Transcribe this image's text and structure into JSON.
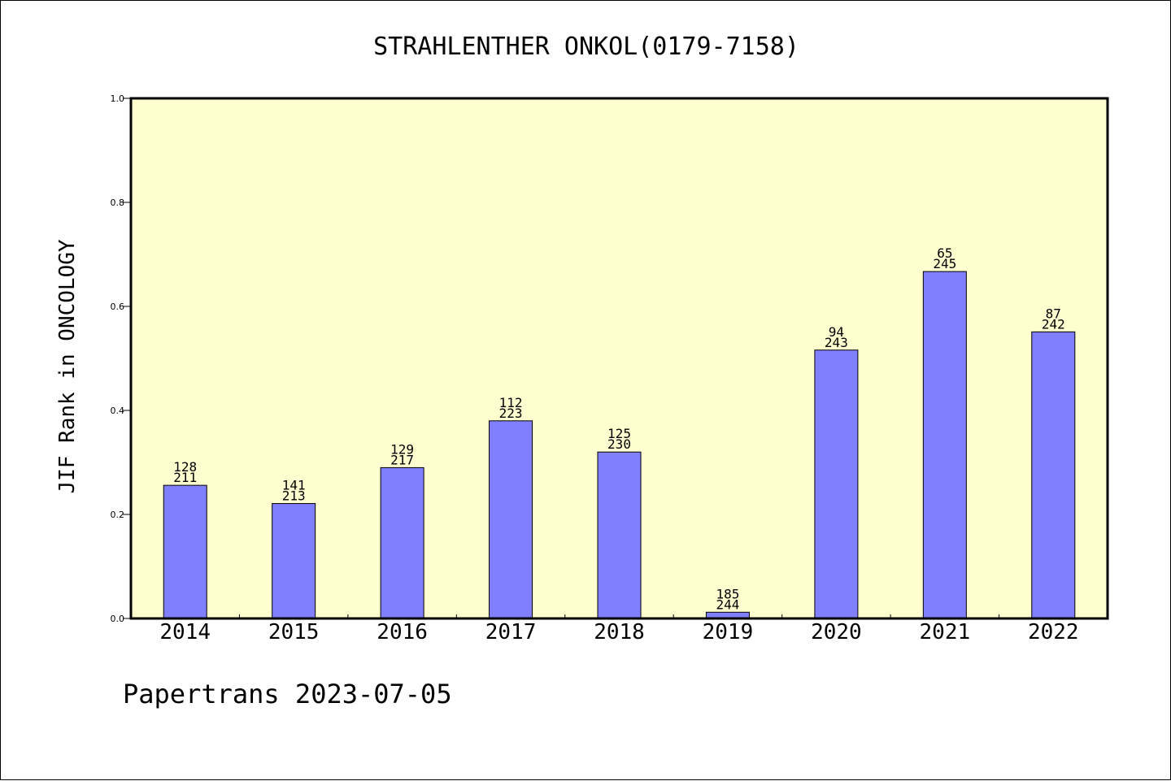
{
  "footer": {
    "text": "Papertrans 2023-07-05"
  },
  "colors": {
    "plot_background": "#ffffd0",
    "bar_fill": "#8080ff",
    "bar_stroke": "#000000",
    "axis": "#000000"
  },
  "chart_data": {
    "type": "bar",
    "title": "STRAHLENTHER ONKOL(0179-7158)",
    "xlabel": "",
    "ylabel": "JIF Rank in ONCOLOGY",
    "ylim": [
      0,
      1.0
    ],
    "yticks": [
      "0.0",
      "0.2",
      "0.4",
      "0.6",
      "0.8",
      "1.0"
    ],
    "grid": false,
    "categories": [
      "2014",
      "2015",
      "2016",
      "2017",
      "2018",
      "2019",
      "2020",
      "2021",
      "2022"
    ],
    "values": [
      0.256,
      0.221,
      0.29,
      0.38,
      0.32,
      0.012,
      0.516,
      0.667,
      0.551
    ],
    "rank": [
      "128",
      "141",
      "129",
      "112",
      "125",
      "185",
      "94",
      "65",
      "87"
    ],
    "total": [
      "211",
      "213",
      "217",
      "223",
      "230",
      "244",
      "243",
      "245",
      "242"
    ]
  }
}
